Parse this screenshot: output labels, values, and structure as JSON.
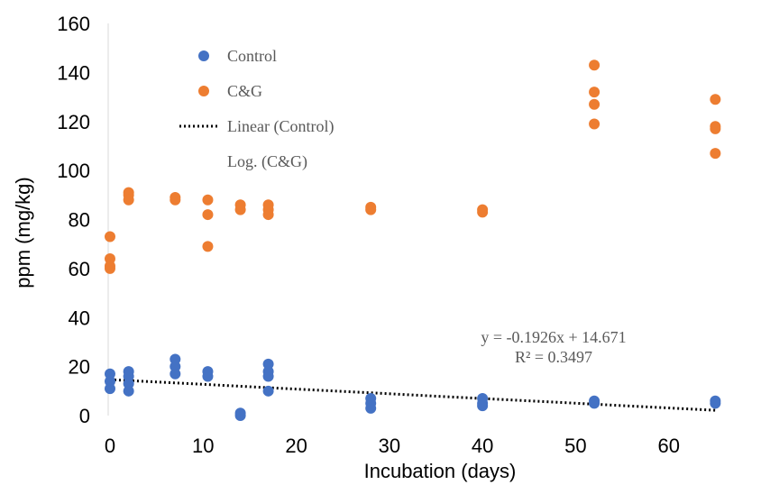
{
  "chart_data": {
    "type": "scatter",
    "xlabel": "Incubation (days)",
    "ylabel": "ppm (mg/kg)",
    "xlim": [
      0,
      70
    ],
    "ylim": [
      0,
      160
    ],
    "xticks": [
      0,
      10,
      20,
      30,
      40,
      50,
      60
    ],
    "yticks": [
      0,
      20,
      40,
      60,
      80,
      100,
      120,
      140,
      160
    ],
    "grid": false,
    "legend_position": "top-left",
    "series": [
      {
        "name": "Control",
        "color": "#4472C4",
        "points": [
          {
            "x": 0,
            "y": 17
          },
          {
            "x": 0,
            "y": 14
          },
          {
            "x": 0,
            "y": 11
          },
          {
            "x": 2,
            "y": 18
          },
          {
            "x": 2,
            "y": 16
          },
          {
            "x": 2,
            "y": 13
          },
          {
            "x": 2,
            "y": 10
          },
          {
            "x": 7,
            "y": 23
          },
          {
            "x": 7,
            "y": 20
          },
          {
            "x": 7,
            "y": 17
          },
          {
            "x": 10.5,
            "y": 18
          },
          {
            "x": 10.5,
            "y": 16
          },
          {
            "x": 14,
            "y": 1
          },
          {
            "x": 14,
            "y": 0
          },
          {
            "x": 17,
            "y": 21
          },
          {
            "x": 17,
            "y": 18
          },
          {
            "x": 17,
            "y": 16
          },
          {
            "x": 17,
            "y": 10
          },
          {
            "x": 28,
            "y": 7
          },
          {
            "x": 28,
            "y": 5
          },
          {
            "x": 28,
            "y": 3
          },
          {
            "x": 40,
            "y": 7
          },
          {
            "x": 40,
            "y": 5
          },
          {
            "x": 40,
            "y": 4
          },
          {
            "x": 52,
            "y": 6
          },
          {
            "x": 52,
            "y": 5
          },
          {
            "x": 65,
            "y": 6
          },
          {
            "x": 65,
            "y": 5
          }
        ]
      },
      {
        "name": "C&G",
        "color": "#ED7D31",
        "points": [
          {
            "x": 0,
            "y": 73
          },
          {
            "x": 0,
            "y": 64
          },
          {
            "x": 0,
            "y": 61
          },
          {
            "x": 0,
            "y": 60
          },
          {
            "x": 2,
            "y": 91
          },
          {
            "x": 2,
            "y": 90
          },
          {
            "x": 2,
            "y": 88
          },
          {
            "x": 7,
            "y": 89
          },
          {
            "x": 7,
            "y": 88
          },
          {
            "x": 10.5,
            "y": 88
          },
          {
            "x": 10.5,
            "y": 82
          },
          {
            "x": 10.5,
            "y": 69
          },
          {
            "x": 14,
            "y": 86
          },
          {
            "x": 14,
            "y": 84
          },
          {
            "x": 17,
            "y": 86
          },
          {
            "x": 17,
            "y": 84
          },
          {
            "x": 17,
            "y": 82
          },
          {
            "x": 28,
            "y": 85
          },
          {
            "x": 28,
            "y": 84
          },
          {
            "x": 40,
            "y": 84
          },
          {
            "x": 40,
            "y": 83
          },
          {
            "x": 52,
            "y": 143
          },
          {
            "x": 52,
            "y": 132
          },
          {
            "x": 52,
            "y": 127
          },
          {
            "x": 52,
            "y": 119
          },
          {
            "x": 65,
            "y": 129
          },
          {
            "x": 65,
            "y": 118
          },
          {
            "x": 65,
            "y": 117
          },
          {
            "x": 65,
            "y": 107
          }
        ]
      }
    ],
    "trendlines": [
      {
        "name": "Linear  (Control)",
        "type": "linear",
        "slope": -0.1926,
        "intercept": 14.671,
        "x_range": [
          0,
          65
        ],
        "color": "#000000",
        "style": "dotted"
      },
      {
        "name": "Log. (C&G)",
        "type": "logarithmic",
        "visible": false
      }
    ],
    "annotations": {
      "equation": "y = -0.1926x + 14.671",
      "r_squared": "R² = 0.3497"
    },
    "legend": [
      {
        "label": "Control",
        "kind": "marker",
        "color": "#4472C4"
      },
      {
        "label": "C&G",
        "kind": "marker",
        "color": "#ED7D31"
      },
      {
        "label": "Linear  (Control)",
        "kind": "dotted-line",
        "color": "#000000"
      },
      {
        "label": "Log. (C&G)",
        "kind": "none"
      }
    ]
  }
}
